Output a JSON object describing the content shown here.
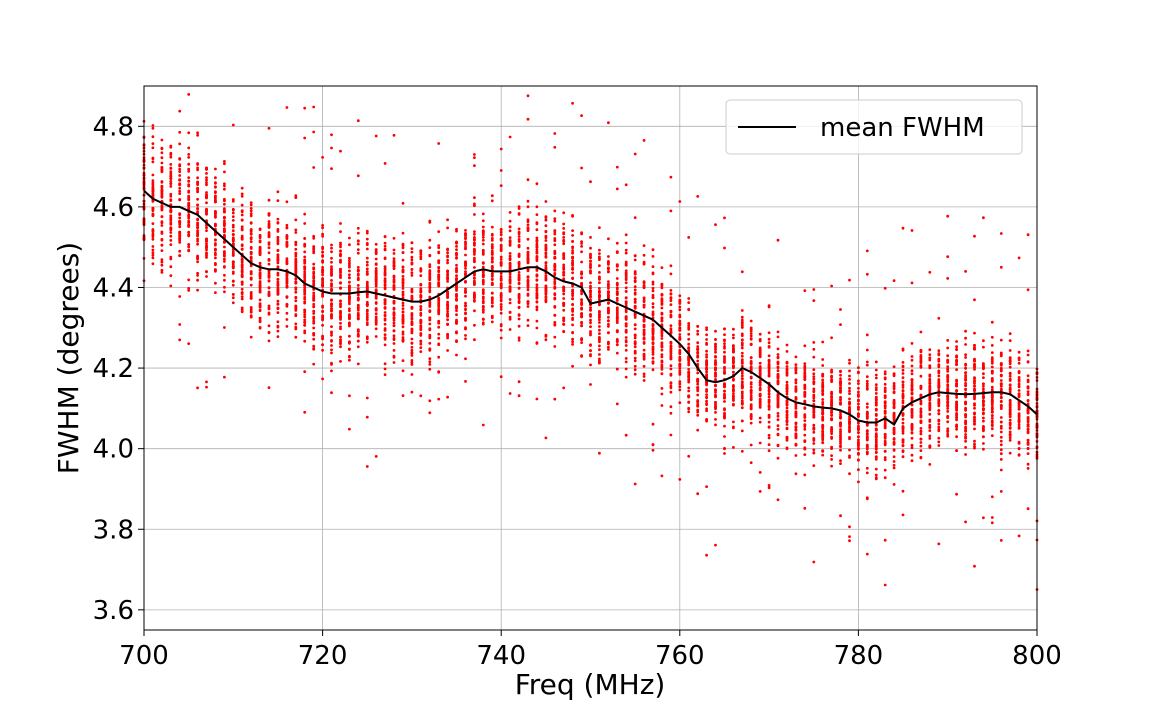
{
  "chart_data": {
    "type": "scatter",
    "xlabel": "Freq (MHz)",
    "ylabel": "FWHM (degrees)",
    "xlim": [
      700,
      800
    ],
    "ylim": [
      3.55,
      4.9
    ],
    "x_ticks": [
      "700",
      "720",
      "740",
      "760",
      "780",
      "800"
    ],
    "y_ticks": [
      "3.6",
      "3.8",
      "4.0",
      "4.2",
      "4.4",
      "4.6",
      "4.8"
    ],
    "grid": true,
    "legend": {
      "position": "top-right",
      "entries": [
        "mean FWHM"
      ]
    },
    "colors": {
      "scatter": "#ff0000",
      "mean_line": "#000000"
    },
    "series": [
      {
        "name": "mean FWHM",
        "type": "line",
        "x": [
          700,
          701,
          702,
          703,
          704,
          705,
          706,
          707,
          708,
          709,
          710,
          711,
          712,
          713,
          714,
          715,
          716,
          717,
          718,
          719,
          720,
          721,
          722,
          723,
          724,
          725,
          726,
          727,
          728,
          729,
          730,
          731,
          732,
          733,
          734,
          735,
          736,
          737,
          738,
          739,
          740,
          741,
          742,
          743,
          744,
          745,
          746,
          747,
          748,
          749,
          750,
          751,
          752,
          753,
          754,
          755,
          756,
          757,
          758,
          759,
          760,
          761,
          762,
          763,
          764,
          765,
          766,
          767,
          768,
          769,
          770,
          771,
          772,
          773,
          774,
          775,
          776,
          777,
          778,
          779,
          780,
          781,
          782,
          783,
          784,
          785,
          786,
          787,
          788,
          789,
          790,
          791,
          792,
          793,
          794,
          795,
          796,
          797,
          798,
          799,
          800
        ],
        "y": [
          4.64,
          4.62,
          4.61,
          4.6,
          4.6,
          4.59,
          4.58,
          4.56,
          4.54,
          4.52,
          4.5,
          4.48,
          4.46,
          4.45,
          4.445,
          4.445,
          4.44,
          4.43,
          4.41,
          4.4,
          4.39,
          4.385,
          4.385,
          4.385,
          4.388,
          4.39,
          4.385,
          4.38,
          4.375,
          4.37,
          4.365,
          4.365,
          4.37,
          4.38,
          4.395,
          4.41,
          4.425,
          4.44,
          4.445,
          4.44,
          4.44,
          4.44,
          4.445,
          4.45,
          4.45,
          4.44,
          4.425,
          4.415,
          4.41,
          4.4,
          4.36,
          4.365,
          4.37,
          4.36,
          4.35,
          4.34,
          4.33,
          4.32,
          4.3,
          4.28,
          4.26,
          4.235,
          4.2,
          4.17,
          4.165,
          4.17,
          4.18,
          4.2,
          4.19,
          4.175,
          4.16,
          4.14,
          4.125,
          4.115,
          4.11,
          4.105,
          4.102,
          4.1,
          4.095,
          4.085,
          4.07,
          4.065,
          4.065,
          4.075,
          4.06,
          4.1,
          4.115,
          4.125,
          4.135,
          4.14,
          4.138,
          4.136,
          4.135,
          4.136,
          4.138,
          4.14,
          4.14,
          4.135,
          4.12,
          4.105,
          4.085
        ]
      }
    ]
  }
}
